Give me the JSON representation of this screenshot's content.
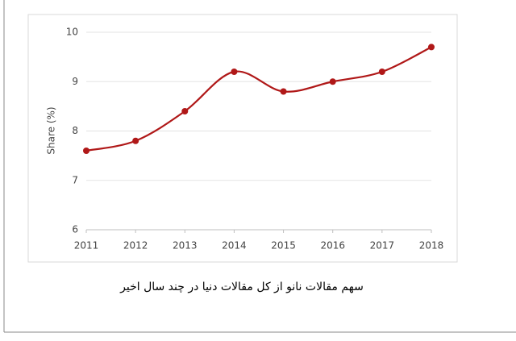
{
  "chart_data": {
    "type": "line",
    "y_label": "Share (%)",
    "caption": "سهم مقالات نانو از کل مقالات دنیا در چند سال اخیر",
    "x": [
      2011,
      2012,
      2013,
      2014,
      2015,
      2016,
      2017,
      2018
    ],
    "series": [
      {
        "color": "#b01818",
        "values": [
          7.6,
          7.8,
          8.4,
          9.2,
          8.8,
          9.0,
          9.2,
          9.7
        ]
      }
    ],
    "xlim": [
      2011,
      2018
    ],
    "xticks": [
      2011,
      2012,
      2013,
      2014,
      2015,
      2016,
      2017,
      2018
    ],
    "ylim": [
      6,
      10
    ],
    "yticks": [
      6,
      7,
      8,
      9,
      10
    ],
    "grid": true,
    "smooth": true
  }
}
